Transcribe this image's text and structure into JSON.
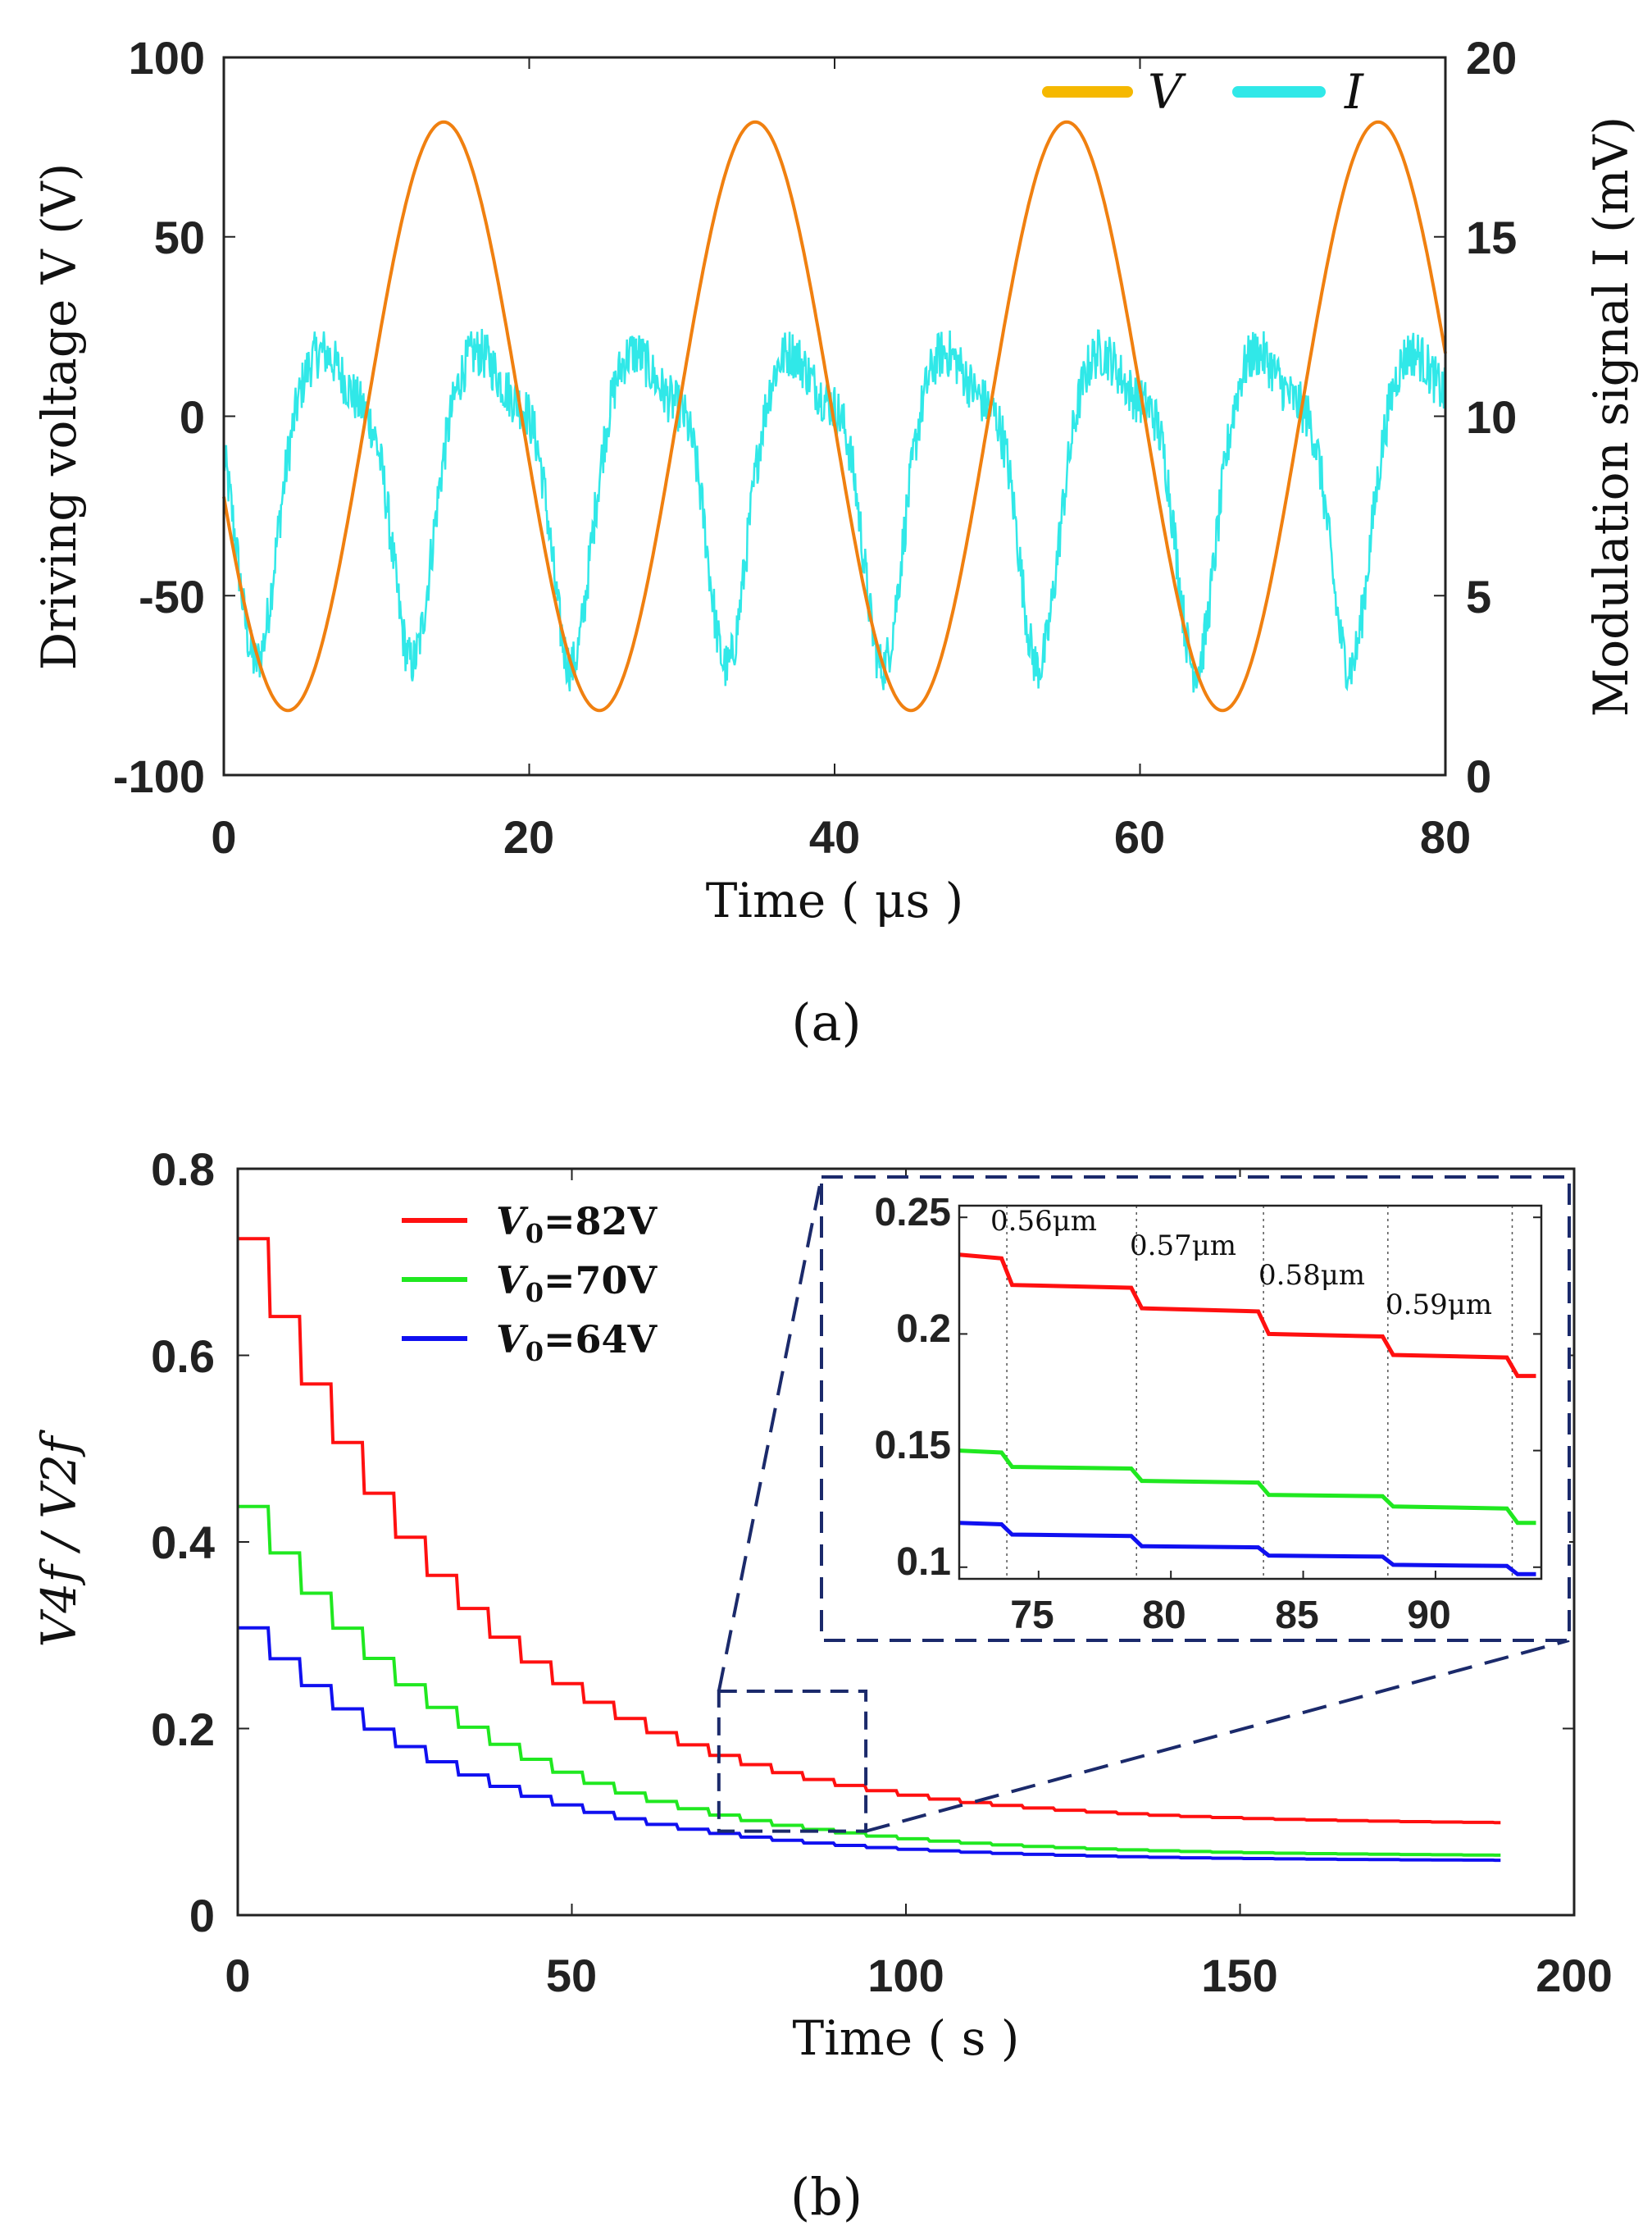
{
  "chart_data": [
    {
      "type": "line",
      "panel": "a",
      "caption": "(a)",
      "xlabel": "Time ( μs )",
      "ylabel_left": "Driving voltage V (V)",
      "ylabel_right": "Modulation signal I (mV)",
      "xlim": [
        0,
        80
      ],
      "ylim_left": [
        -100,
        100
      ],
      "ylim_right": [
        0,
        20
      ],
      "xticks": [
        "0",
        "20",
        "40",
        "60",
        "80"
      ],
      "yticks_left": [
        "100",
        "50",
        "0",
        "-50",
        "-100"
      ],
      "yticks_right": [
        "20",
        "15",
        "10",
        "5",
        "0"
      ],
      "series": [
        {
          "name": "V",
          "color": "#F08010",
          "axis": "left",
          "amplitude": 82,
          "period": 20.4,
          "zero_cross_up": 9.3
        },
        {
          "name": "I",
          "color": "#30E8E8",
          "axis": "right",
          "mean": 11.2,
          "dips": [
            2.0,
            12.2,
            22.6,
            32.8,
            43.0,
            53.2,
            63.5,
            73.6
          ],
          "dip_min": 2.8
        }
      ],
      "legend": [
        "V",
        "I"
      ]
    },
    {
      "type": "line",
      "panel": "b",
      "caption": "(b)",
      "xlabel": "Time ( s )",
      "ylabel": "V4f / V2f",
      "xlim": [
        0,
        200
      ],
      "ylim": [
        0,
        0.8
      ],
      "xticks": [
        "0",
        "50",
        "100",
        "150",
        "200"
      ],
      "yticks": [
        "0.8",
        "0.6",
        "0.4",
        "0.2",
        "0"
      ],
      "series": [
        {
          "name": "V0=82V",
          "label_main": "V",
          "label_sub": "0",
          "label_rest": "=82V",
          "color": "#FF1010",
          "start": 0.725,
          "end": 0.097
        },
        {
          "name": "V0=70V",
          "label_main": "V",
          "label_sub": "0",
          "label_rest": "=70V",
          "color": "#20E820",
          "start": 0.438,
          "end": 0.063
        },
        {
          "name": "V0=64V",
          "label_main": "V",
          "label_sub": "0",
          "label_rest": "=64V",
          "color": "#1010F0",
          "start": 0.308,
          "end": 0.058
        }
      ],
      "x_end": 189,
      "step_interval": 4.7,
      "inset": {
        "xlim": [
          72,
          94
        ],
        "ylim": [
          0.095,
          0.255
        ],
        "xticks": [
          "75",
          "80",
          "85",
          "90"
        ],
        "yticks": [
          "0.25",
          "0.2",
          "0.15",
          "0.1"
        ],
        "step_times": [
          73.8,
          78.7,
          83.5,
          88.2,
          92.9
        ],
        "annotations": [
          "0.56μm",
          "0.57μm",
          "0.58μm",
          "0.59μm"
        ],
        "red_levels": [
          0.234,
          0.221,
          0.211,
          0.2,
          0.191,
          0.182
        ],
        "green_levels": [
          0.15,
          0.143,
          0.137,
          0.131,
          0.126,
          0.119
        ],
        "blue_levels": [
          0.119,
          0.114,
          0.109,
          0.105,
          0.101,
          0.097
        ]
      },
      "zoom_box": {
        "xlim": [
          72,
          94
        ],
        "ylim": [
          0.09,
          0.24
        ]
      }
    }
  ]
}
